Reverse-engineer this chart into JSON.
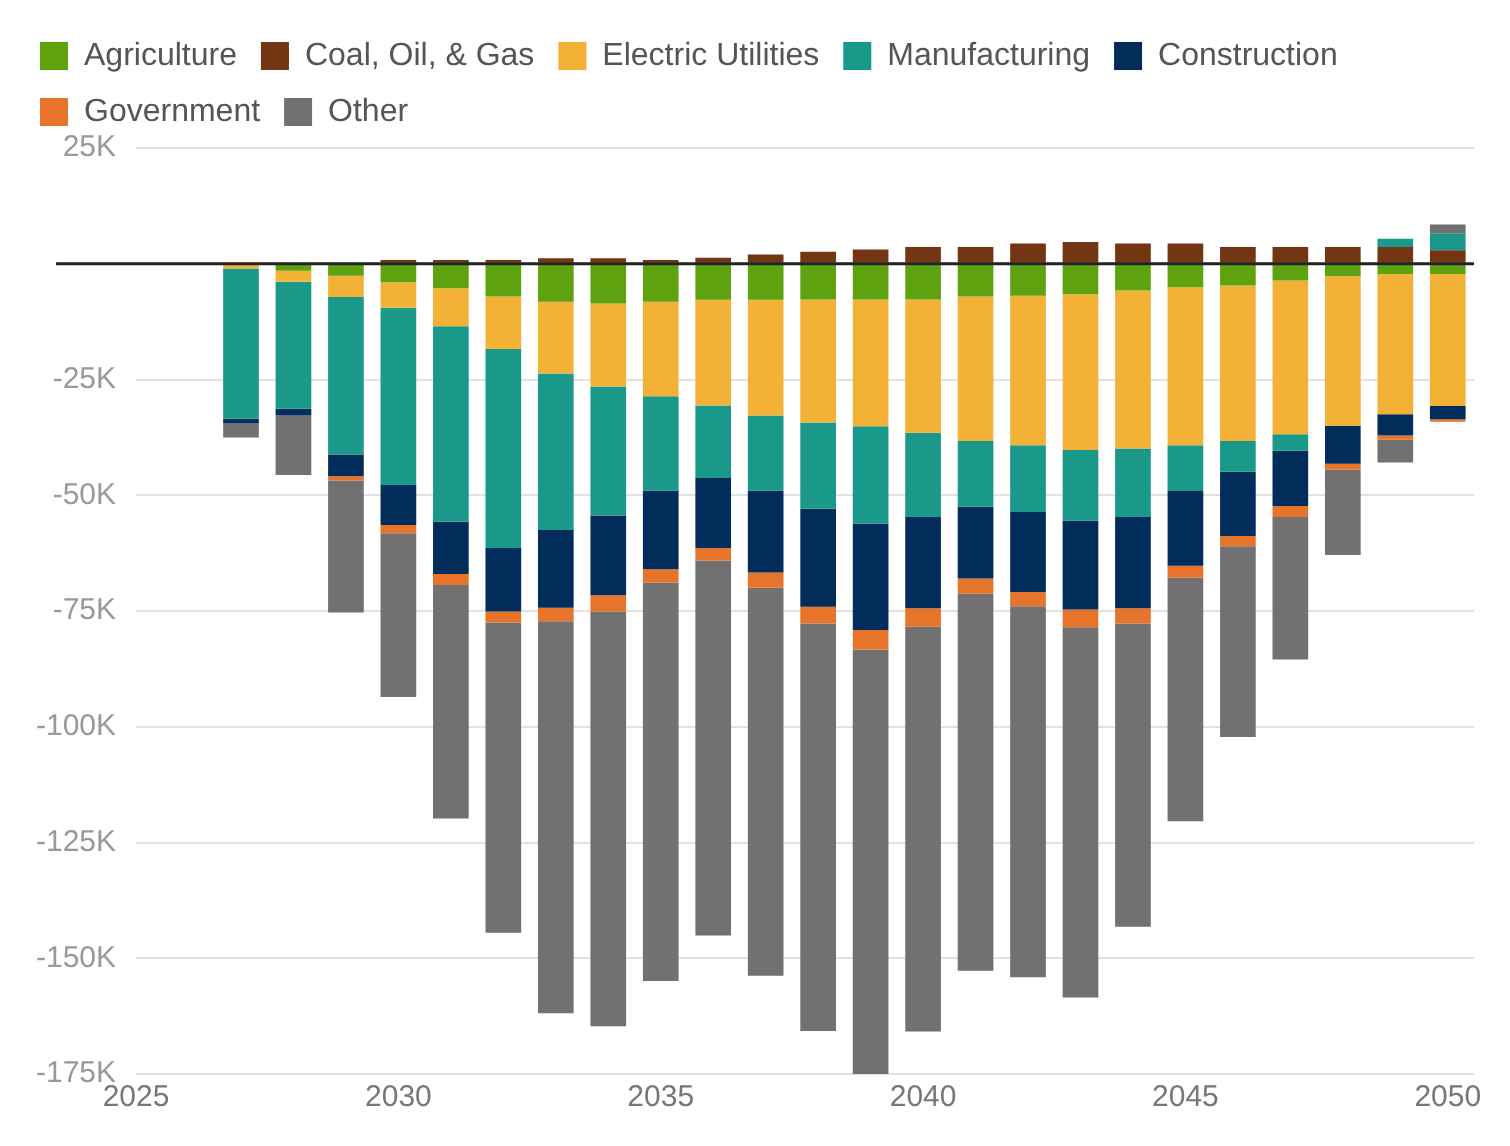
{
  "chart_data": {
    "type": "bar",
    "stacked": true,
    "x": [
      2027,
      2028,
      2029,
      2030,
      2031,
      2032,
      2033,
      2034,
      2035,
      2036,
      2037,
      2038,
      2039,
      2040,
      2041,
      2042,
      2043,
      2044,
      2045,
      2046,
      2047,
      2048,
      2049,
      2050
    ],
    "series": [
      {
        "name": "Agriculture",
        "color": "#5ea30f",
        "values": [
          null,
          -1500,
          -2600,
          -4000,
          -5300,
          -7100,
          -8200,
          -8600,
          -8200,
          -7800,
          -7800,
          -7700,
          -7700,
          -7700,
          -7100,
          -6900,
          -6600,
          -5800,
          -5100,
          -4700,
          -3600,
          -2700,
          -2200,
          -2200
        ]
      },
      {
        "name": "Coal, Oil, & Gas",
        "color": "#733512",
        "values": [
          0,
          0,
          0,
          800,
          800,
          800,
          1200,
          1200,
          800,
          1300,
          2000,
          2600,
          3100,
          3600,
          3600,
          4400,
          4700,
          4400,
          4400,
          3600,
          3600,
          3600,
          3600,
          2900
        ]
      },
      {
        "name": "Electric Utilities",
        "color": "#f3b236",
        "values": [
          -1000,
          -2400,
          -4600,
          -5500,
          -8200,
          -11300,
          -15500,
          -17900,
          -20400,
          -22800,
          -25000,
          -26600,
          -27400,
          -28800,
          -31200,
          -32300,
          -33600,
          -34100,
          -34100,
          -33600,
          -33200,
          -32300,
          -30300,
          -28500
        ]
      },
      {
        "name": "Manufacturing",
        "color": "#1a988a",
        "values": [
          -32500,
          -27400,
          -34000,
          -38300,
          -42200,
          -43000,
          -33800,
          -27900,
          -20400,
          -15700,
          -16200,
          -18600,
          -21000,
          -18200,
          -14200,
          -14400,
          -15300,
          -14800,
          -9900,
          -6600,
          -3600,
          0,
          1800,
          3600
        ]
      },
      {
        "name": "Construction",
        "color": "#022d5b",
        "values": [
          -1000,
          -1500,
          -4700,
          -8600,
          -11300,
          -13700,
          -16800,
          -17200,
          -17000,
          -15100,
          -17700,
          -21200,
          -23000,
          -19700,
          -15500,
          -17300,
          -19200,
          -19700,
          -16100,
          -13900,
          -11900,
          -8200,
          -4600,
          -2900
        ]
      },
      {
        "name": "Government",
        "color": "#e6742a",
        "values": [
          0,
          0,
          -900,
          -1800,
          -2400,
          -2400,
          -2900,
          -3500,
          -2900,
          -2700,
          -3300,
          -3600,
          -4200,
          -4000,
          -3300,
          -3100,
          -3800,
          -3300,
          -2600,
          -2200,
          -2400,
          -1300,
          -900,
          -500
        ]
      },
      {
        "name": "Other",
        "color": "#717171",
        "values": [
          -3000,
          -12800,
          -28500,
          -35400,
          -50400,
          -67000,
          -84700,
          -89600,
          -86000,
          -81000,
          -83800,
          -88000,
          -92000,
          -87400,
          -81400,
          -80100,
          -80000,
          -65500,
          -52600,
          -41200,
          -30800,
          -18400,
          -4900,
          2000
        ]
      }
    ],
    "xlim": [
      2025,
      2050.5
    ],
    "xticks": [
      2025,
      2030,
      2035,
      2040,
      2045,
      2050
    ],
    "ylim": [
      -175000,
      25000
    ],
    "yticks": [
      {
        "value": 25000,
        "label": "25K"
      },
      {
        "value": 0,
        "label": null
      },
      {
        "value": -25000,
        "label": "-25K"
      },
      {
        "value": -50000,
        "label": "-50K"
      },
      {
        "value": -75000,
        "label": "-75K"
      },
      {
        "value": -100000,
        "label": "-100K"
      },
      {
        "value": -125000,
        "label": "-125K"
      },
      {
        "value": -150000,
        "label": "-150K"
      },
      {
        "value": -175000,
        "label": "-175K"
      }
    ],
    "ref_lines": [
      {
        "axis": "y",
        "value": 0,
        "color": "#222222"
      }
    ],
    "grid": "y",
    "legend": "top left"
  }
}
